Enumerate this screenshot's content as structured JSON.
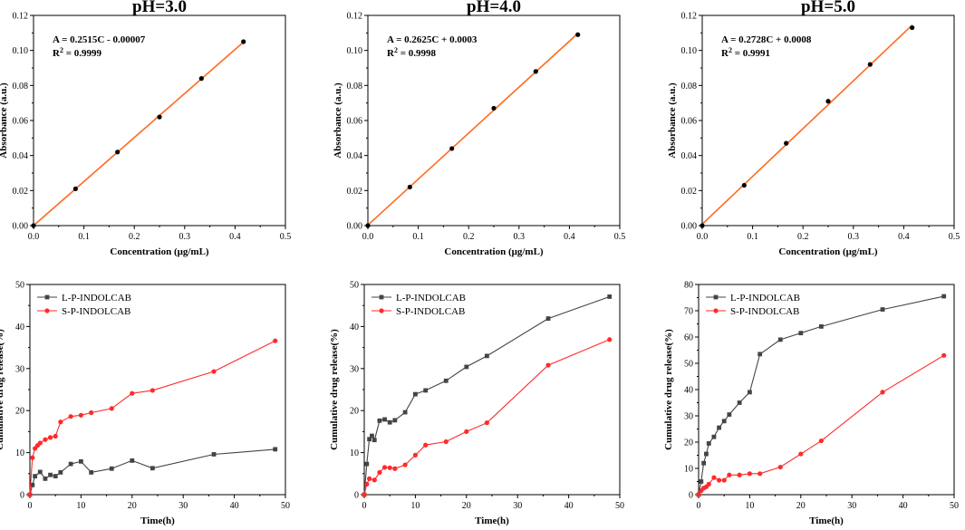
{
  "chart_data": [
    {
      "type": "scatter",
      "title": "pH=3.0",
      "xlabel": "Concentration (μg/mL)",
      "ylabel": "Absorbance (a.u.)",
      "xlim": [
        0,
        0.5
      ],
      "ylim": [
        0,
        0.12
      ],
      "xticks": [
        "0.0",
        "0.1",
        "0.2",
        "0.3",
        "0.4",
        "0.5"
      ],
      "yticks": [
        "0.00",
        "0.02",
        "0.04",
        "0.06",
        "0.08",
        "0.10",
        "0.12"
      ],
      "equation": "A = 0.2515C - 0.00007",
      "r2_label": "R",
      "r2_sup": "2",
      "r2_value": " = 0.9999",
      "x": [
        0,
        0.0833,
        0.1667,
        0.25,
        0.3333,
        0.4167
      ],
      "y": [
        0,
        0.021,
        0.042,
        0.062,
        0.084,
        0.105
      ],
      "fit": {
        "slope": 0.2515,
        "intercept": -7e-05
      },
      "fit_color": "#ff6a1f",
      "point_color": "#000000"
    },
    {
      "type": "scatter",
      "title": "pH=4.0",
      "xlabel": "Concentration (μg/mL)",
      "ylabel": "Absorbance (a.u.)",
      "xlim": [
        0,
        0.5
      ],
      "ylim": [
        0,
        0.12
      ],
      "xticks": [
        "0.0",
        "0.1",
        "0.2",
        "0.3",
        "0.4",
        "0.5"
      ],
      "yticks": [
        "0.00",
        "0.02",
        "0.04",
        "0.06",
        "0.08",
        "0.10",
        "0.12"
      ],
      "equation": "A = 0.2625C + 0.0003",
      "r2_label": "R",
      "r2_sup": "2",
      "r2_value": " = 0.9998",
      "x": [
        0,
        0.0833,
        0.1667,
        0.25,
        0.3333,
        0.4167
      ],
      "y": [
        0,
        0.022,
        0.044,
        0.067,
        0.088,
        0.109
      ],
      "fit": {
        "slope": 0.2625,
        "intercept": 0.0003
      },
      "fit_color": "#ff6a1f",
      "point_color": "#000000"
    },
    {
      "type": "scatter",
      "title": "pH=5.0",
      "xlabel": "Concentration (μg/mL)",
      "ylabel": "Absorbance (a.u.)",
      "xlim": [
        0,
        0.5
      ],
      "ylim": [
        0,
        0.12
      ],
      "xticks": [
        "0.0",
        "0.1",
        "0.2",
        "0.3",
        "0.4",
        "0.5"
      ],
      "yticks": [
        "0.00",
        "0.02",
        "0.04",
        "0.06",
        "0.08",
        "0.10",
        "0.12"
      ],
      "equation": "A = 0.2728C + 0.0008",
      "r2_label": "R",
      "r2_sup": "2",
      "r2_value": " = 0.9991",
      "x": [
        0,
        0.0833,
        0.1667,
        0.25,
        0.3333,
        0.4167
      ],
      "y": [
        0,
        0.023,
        0.047,
        0.071,
        0.092,
        0.113
      ],
      "fit": {
        "slope": 0.2728,
        "intercept": 0.0008
      },
      "fit_color": "#ff6a1f",
      "point_color": "#000000"
    },
    {
      "type": "line",
      "xlabel": "Time(h)",
      "ylabel": "Cumulative drug release(%)",
      "xlim": [
        0,
        50
      ],
      "ylim": [
        0,
        50
      ],
      "xticks": [
        "0",
        "10",
        "20",
        "30",
        "40",
        "50"
      ],
      "yticks": [
        "0",
        "10",
        "20",
        "30",
        "40",
        "50"
      ],
      "legend_position": "top-left",
      "series": [
        {
          "name": "L-P-INDOLCAB",
          "marker": "square",
          "color": "#444444",
          "x": [
            0,
            0.5,
            1,
            2,
            3,
            4,
            5,
            6,
            8,
            10,
            12,
            16,
            20,
            24,
            36,
            48
          ],
          "y": [
            0,
            2.3,
            4.4,
            5.4,
            3.8,
            4.7,
            4.4,
            5.3,
            7.3,
            7.9,
            5.3,
            6.2,
            8.1,
            6.3,
            9.6,
            10.8
          ]
        },
        {
          "name": "S-P-INDOLCAB",
          "marker": "circle",
          "color": "#ff2a2a",
          "x": [
            0,
            0.5,
            1,
            1.5,
            2,
            3,
            4,
            5,
            6,
            8,
            10,
            12,
            16,
            20,
            24,
            36,
            48
          ],
          "y": [
            0,
            8.8,
            11.0,
            11.7,
            12.3,
            13.1,
            13.6,
            13.9,
            17.3,
            18.6,
            18.9,
            19.5,
            20.5,
            24.1,
            24.8,
            29.3,
            36.6
          ]
        }
      ]
    },
    {
      "type": "line",
      "xlabel": "Time(h)",
      "ylabel": "Cumulative drug release(%)",
      "xlim": [
        0,
        50
      ],
      "ylim": [
        0,
        50
      ],
      "xticks": [
        "0",
        "10",
        "20",
        "30",
        "40",
        "50"
      ],
      "yticks": [
        "0",
        "10",
        "20",
        "30",
        "40",
        "50"
      ],
      "legend_position": "top-left",
      "series": [
        {
          "name": "L-P-INDOLCAB",
          "marker": "square",
          "color": "#444444",
          "x": [
            0,
            0.5,
            1,
            1.5,
            2,
            3,
            4,
            5,
            6,
            8,
            10,
            12,
            16,
            20,
            24,
            36,
            48
          ],
          "y": [
            0,
            7.3,
            13.2,
            14.0,
            13.0,
            17.6,
            17.9,
            17.2,
            17.7,
            19.6,
            23.9,
            24.8,
            27.1,
            30.4,
            33.0,
            41.9,
            47.1
          ]
        },
        {
          "name": "S-P-INDOLCAB",
          "marker": "circle",
          "color": "#ff2a2a",
          "x": [
            0,
            0.5,
            1,
            2,
            3,
            4,
            5,
            6,
            8,
            10,
            12,
            16,
            20,
            24,
            36,
            48
          ],
          "y": [
            0,
            2.5,
            3.8,
            3.5,
            5.3,
            6.5,
            6.4,
            6.2,
            7.1,
            9.4,
            11.8,
            12.6,
            15.0,
            17.1,
            30.8,
            36.9
          ]
        }
      ]
    },
    {
      "type": "line",
      "xlabel": "Time(h)",
      "ylabel": "Cumulative drug release(%)",
      "xlim": [
        0,
        50
      ],
      "ylim": [
        0,
        80
      ],
      "xticks": [
        "0",
        "10",
        "20",
        "30",
        "40",
        "50"
      ],
      "yticks": [
        "0",
        "10",
        "20",
        "30",
        "40",
        "50",
        "60",
        "70",
        "80"
      ],
      "legend_position": "top-left",
      "series": [
        {
          "name": "L-P-INDOLCAB",
          "marker": "square",
          "color": "#444444",
          "x": [
            0,
            0.5,
            1,
            1.5,
            2,
            3,
            4,
            5,
            6,
            8,
            10,
            12,
            16,
            20,
            24,
            36,
            48
          ],
          "y": [
            0,
            5.0,
            12.0,
            15.5,
            19.5,
            22.0,
            25.5,
            28.0,
            30.5,
            35.0,
            39.0,
            53.5,
            59.0,
            61.5,
            64.0,
            70.5,
            75.5
          ]
        },
        {
          "name": "S-P-INDOLCAB",
          "marker": "circle",
          "color": "#ff2a2a",
          "x": [
            0,
            0.5,
            1,
            1.5,
            2,
            3,
            4,
            5,
            6,
            8,
            10,
            12,
            16,
            20,
            24,
            36,
            48
          ],
          "y": [
            0,
            1.5,
            2.5,
            3.0,
            4.0,
            6.5,
            5.5,
            5.5,
            7.5,
            7.5,
            8.0,
            8.0,
            10.5,
            15.5,
            20.5,
            39.0,
            53.0
          ]
        }
      ]
    }
  ]
}
